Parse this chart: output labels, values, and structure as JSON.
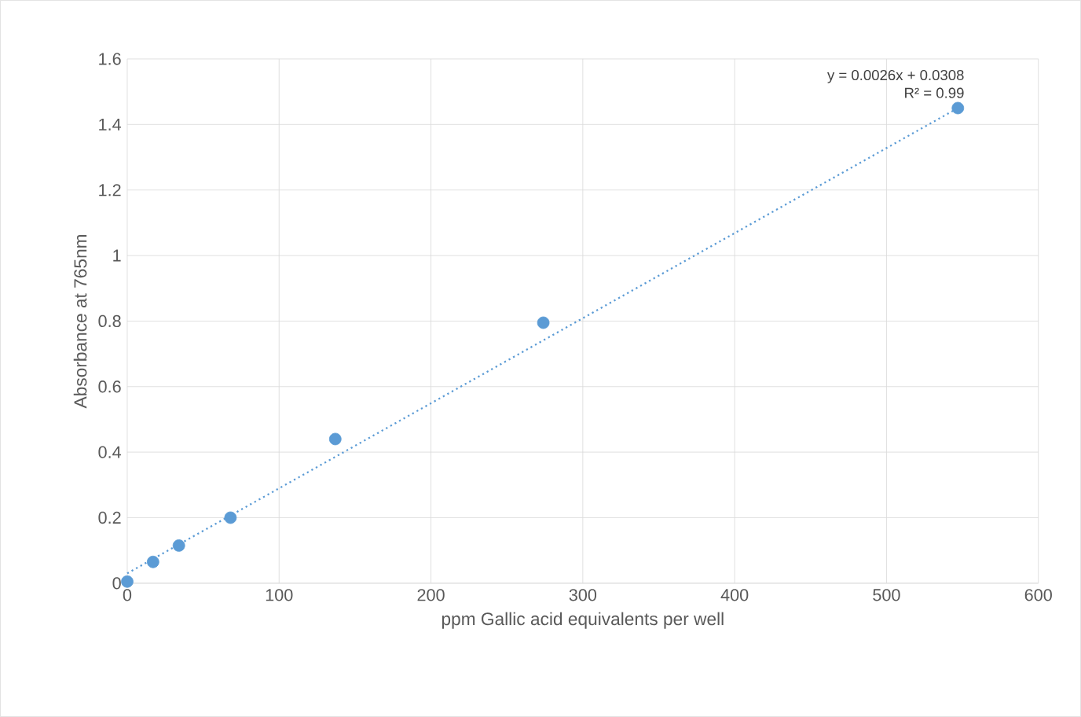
{
  "chart_data": {
    "type": "scatter",
    "xlabel": "ppm Gallic acid equivalents per well",
    "ylabel": "Absorbance  at 765nm",
    "series": [
      {
        "color": "#5b9bd5",
        "marker": "circle",
        "x": [
          0,
          17,
          34,
          68,
          137,
          274,
          547
        ],
        "values": [
          0.005,
          0.065,
          0.115,
          0.2,
          0.44,
          0.795,
          1.45
        ]
      },
      {
        "type": "line",
        "color": "#5b9bd5",
        "line_style": "dotted",
        "marker": "none",
        "x": [
          0,
          547
        ],
        "values": [
          0.03,
          1.45
        ]
      }
    ],
    "annotations": [
      "y = 0.0026x + 0.0308",
      "R² = 0.99"
    ],
    "xlim": [
      0,
      600
    ],
    "ylim": [
      0,
      1.6
    ],
    "xticks": [
      0,
      100,
      200,
      300,
      400,
      500,
      600
    ],
    "yticks": [
      0,
      {
        "value": 0.2,
        "label": "0.2"
      },
      {
        "value": 0.4,
        "label": "0.4"
      },
      {
        "value": 0.6,
        "label": "0.6"
      },
      {
        "value": 0.8,
        "label": "0.8"
      },
      1,
      {
        "value": 1.2,
        "label": "1.2"
      },
      {
        "value": 1.4,
        "label": "1.4"
      },
      {
        "value": 1.6,
        "label": "1.6"
      }
    ],
    "grid": true
  }
}
